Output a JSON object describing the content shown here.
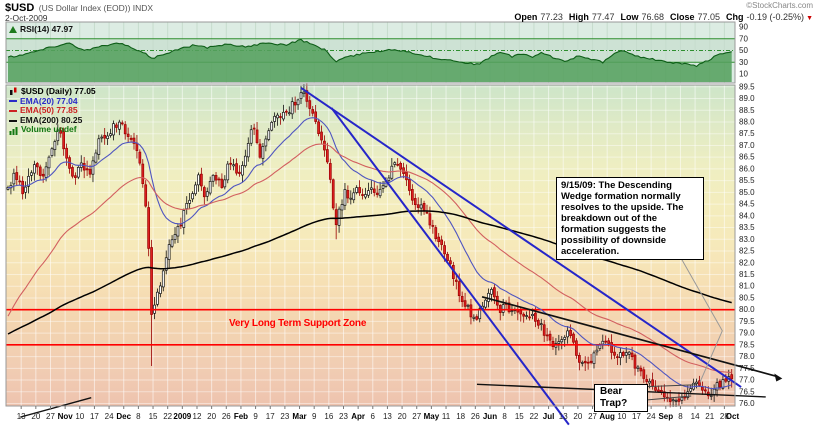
{
  "header": {
    "symbol": "$USD",
    "description": "(US Dollar Index (EOD)) INDX",
    "date": "2-Oct-2009",
    "credit": "©StockCharts.com",
    "quote": {
      "open_label": "Open",
      "open": "77.23",
      "high_label": "High",
      "high": "77.47",
      "low_label": "Low",
      "low": "76.68",
      "close_label": "Close",
      "close": "77.05",
      "chg_label": "Chg",
      "chg": "-0.19 (-0.25%)"
    }
  },
  "rsi_legend": {
    "label": "RSI(14) 47.97"
  },
  "main_legend": {
    "items": [
      {
        "label": "$USD (Daily) 77.05",
        "color": "#000000",
        "icon": "candlestick-icon"
      },
      {
        "label": "EMA(20) 77.04",
        "color": "#2a2ac8",
        "icon": "line-swatch-icon"
      },
      {
        "label": "EMA(50) 77.85",
        "color": "#cc2222",
        "icon": "line-swatch-icon"
      },
      {
        "label": "EMA(200) 80.25",
        "color": "#111111",
        "icon": "line-swatch-icon"
      },
      {
        "label": "Volume undef",
        "color": "#117711",
        "icon": "volume-bars-icon"
      }
    ]
  },
  "annotations": {
    "wedge_note": "9/15/09: The Descending Wedge formation normally resolves to the upside. The breakdown out of the formation suggests the possibility of downside acceleration.",
    "bear_trap_line1": "Bear",
    "bear_trap_line2": "Trap?",
    "support_zone": "Very Long Term Support Zone"
  },
  "chart_data": {
    "type": "candlestick",
    "symbol": "$USD",
    "period_label": "Daily",
    "last_quote": {
      "open": 77.23,
      "high": 77.47,
      "low": 76.68,
      "close": 77.05,
      "change": -0.19,
      "change_pct": -0.25
    },
    "price_axis": {
      "min": 76.0,
      "max": 89.5,
      "step": 0.5
    },
    "x_labels": [
      {
        "t": "13"
      },
      {
        "t": "20"
      },
      {
        "t": "27"
      },
      {
        "t": "Nov",
        "bold": true
      },
      {
        "t": "10"
      },
      {
        "t": "17"
      },
      {
        "t": "24"
      },
      {
        "t": "Dec",
        "bold": true
      },
      {
        "t": "8"
      },
      {
        "t": "15"
      },
      {
        "t": "22"
      },
      {
        "t": "2009",
        "bold": true
      },
      {
        "t": "12"
      },
      {
        "t": "20"
      },
      {
        "t": "26"
      },
      {
        "t": "Feb",
        "bold": true
      },
      {
        "t": "9"
      },
      {
        "t": "17"
      },
      {
        "t": "23"
      },
      {
        "t": "Mar",
        "bold": true
      },
      {
        "t": "9"
      },
      {
        "t": "16"
      },
      {
        "t": "23"
      },
      {
        "t": "Apr",
        "bold": true
      },
      {
        "t": "6"
      },
      {
        "t": "13"
      },
      {
        "t": "20"
      },
      {
        "t": "27"
      },
      {
        "t": "May",
        "bold": true
      },
      {
        "t": "11"
      },
      {
        "t": "18"
      },
      {
        "t": "26"
      },
      {
        "t": "Jun",
        "bold": true
      },
      {
        "t": "8"
      },
      {
        "t": "15"
      },
      {
        "t": "22"
      },
      {
        "t": "Jul",
        "bold": true
      },
      {
        "t": "13"
      },
      {
        "t": "20"
      },
      {
        "t": "27"
      },
      {
        "t": "Aug",
        "bold": true
      },
      {
        "t": "10"
      },
      {
        "t": "17"
      },
      {
        "t": "24"
      },
      {
        "t": "Sep",
        "bold": true
      },
      {
        "t": "8"
      },
      {
        "t": "14"
      },
      {
        "t": "21"
      },
      {
        "t": "28"
      },
      {
        "t": "Oct",
        "bold": true,
        "w": 48.55
      }
    ],
    "candles": {
      "count": 248,
      "close_anchors": [
        [
          0.0,
          85.2
        ],
        [
          0.01,
          85.8
        ],
        [
          0.022,
          84.9
        ],
        [
          0.035,
          86.2
        ],
        [
          0.048,
          85.6
        ],
        [
          0.06,
          86.9
        ],
        [
          0.072,
          87.7
        ],
        [
          0.08,
          86.5
        ],
        [
          0.09,
          85.5
        ],
        [
          0.1,
          86.3
        ],
        [
          0.112,
          85.7
        ],
        [
          0.125,
          87.2
        ],
        [
          0.14,
          87.5
        ],
        [
          0.155,
          88.2
        ],
        [
          0.165,
          87.3
        ],
        [
          0.175,
          86.9
        ],
        [
          0.183,
          86.1
        ],
        [
          0.19,
          84.6
        ],
        [
          0.195,
          82.3
        ],
        [
          0.199,
          79.3
        ],
        [
          0.205,
          80.8
        ],
        [
          0.212,
          81.3
        ],
        [
          0.22,
          82.6
        ],
        [
          0.23,
          83.3
        ],
        [
          0.24,
          83.8
        ],
        [
          0.252,
          84.8
        ],
        [
          0.262,
          85.7
        ],
        [
          0.272,
          84.9
        ],
        [
          0.285,
          85.9
        ],
        [
          0.295,
          85.1
        ],
        [
          0.305,
          86.4
        ],
        [
          0.318,
          85.6
        ],
        [
          0.328,
          86.6
        ],
        [
          0.34,
          87.9
        ],
        [
          0.348,
          86.5
        ],
        [
          0.356,
          87.3
        ],
        [
          0.368,
          88.3
        ],
        [
          0.38,
          88.2
        ],
        [
          0.39,
          88.6
        ],
        [
          0.402,
          89.1
        ],
        [
          0.408,
          89.2
        ],
        [
          0.415,
          88.8
        ],
        [
          0.423,
          88.3
        ],
        [
          0.432,
          87.4
        ],
        [
          0.44,
          86.4
        ],
        [
          0.448,
          85.0
        ],
        [
          0.452,
          83.6
        ],
        [
          0.458,
          84.2
        ],
        [
          0.465,
          85.0
        ],
        [
          0.473,
          84.6
        ],
        [
          0.482,
          85.3
        ],
        [
          0.492,
          84.6
        ],
        [
          0.503,
          85.3
        ],
        [
          0.512,
          84.8
        ],
        [
          0.52,
          85.4
        ],
        [
          0.53,
          86.0
        ],
        [
          0.54,
          86.2
        ],
        [
          0.548,
          85.5
        ],
        [
          0.558,
          84.9
        ],
        [
          0.568,
          84.4
        ],
        [
          0.578,
          84.2
        ],
        [
          0.588,
          83.4
        ],
        [
          0.598,
          82.8
        ],
        [
          0.608,
          82.1
        ],
        [
          0.618,
          81.2
        ],
        [
          0.628,
          80.4
        ],
        [
          0.638,
          79.9
        ],
        [
          0.645,
          79.6
        ],
        [
          0.655,
          80.2
        ],
        [
          0.665,
          80.9
        ],
        [
          0.672,
          80.4
        ],
        [
          0.68,
          79.9
        ],
        [
          0.688,
          80.2
        ],
        [
          0.696,
          79.8
        ],
        [
          0.705,
          80.0
        ],
        [
          0.715,
          79.5
        ],
        [
          0.725,
          79.9
        ],
        [
          0.735,
          79.3
        ],
        [
          0.745,
          78.8
        ],
        [
          0.755,
          78.5
        ],
        [
          0.762,
          78.6
        ],
        [
          0.772,
          79.0
        ],
        [
          0.782,
          78.5
        ],
        [
          0.79,
          77.9
        ],
        [
          0.8,
          77.6
        ],
        [
          0.812,
          78.3
        ],
        [
          0.822,
          78.8
        ],
        [
          0.832,
          78.3
        ],
        [
          0.842,
          78.0
        ],
        [
          0.852,
          78.2
        ],
        [
          0.862,
          77.9
        ],
        [
          0.872,
          77.4
        ],
        [
          0.882,
          76.9
        ],
        [
          0.892,
          76.7
        ],
        [
          0.9,
          76.4
        ],
        [
          0.91,
          76.1
        ],
        [
          0.92,
          76.3
        ],
        [
          0.93,
          76.2
        ],
        [
          0.938,
          76.5
        ],
        [
          0.95,
          76.9
        ],
        [
          0.96,
          76.7
        ],
        [
          0.97,
          76.3
        ],
        [
          0.98,
          76.8
        ],
        [
          0.99,
          77.0
        ],
        [
          1.0,
          77.05
        ]
      ],
      "spikes": [
        {
          "x": 0.199,
          "low": 77.6
        },
        {
          "x": 0.408,
          "high": 89.62
        },
        {
          "x": 0.452,
          "low": 83.0
        },
        {
          "x": 0.92,
          "low": 75.85
        }
      ]
    },
    "emas": [
      {
        "period": 20,
        "value": 77.04,
        "color": "#4f55c0",
        "seed": 85.2,
        "width": 1.1
      },
      {
        "period": 50,
        "value": 77.85,
        "color": "#d26060",
        "seed": 79.5,
        "width": 1.1
      },
      {
        "period": 200,
        "value": 80.25,
        "color": "#000000",
        "seed": 78.9,
        "width": 1.5
      }
    ],
    "rsi": {
      "period": 14,
      "value": 47.97,
      "axis_labels": [
        90,
        70,
        50,
        30,
        10
      ],
      "overbought": 70,
      "mid": 50,
      "oversold": 30,
      "anchors": [
        [
          0.0,
          38
        ],
        [
          0.03,
          46
        ],
        [
          0.06,
          56
        ],
        [
          0.085,
          63
        ],
        [
          0.105,
          50
        ],
        [
          0.13,
          57
        ],
        [
          0.155,
          63
        ],
        [
          0.175,
          52
        ],
        [
          0.19,
          44
        ],
        [
          0.2,
          37
        ],
        [
          0.215,
          44
        ],
        [
          0.235,
          52
        ],
        [
          0.26,
          60
        ],
        [
          0.275,
          55
        ],
        [
          0.3,
          60
        ],
        [
          0.33,
          57
        ],
        [
          0.355,
          62
        ],
        [
          0.385,
          60
        ],
        [
          0.405,
          68
        ],
        [
          0.42,
          60
        ],
        [
          0.44,
          50
        ],
        [
          0.452,
          31
        ],
        [
          0.465,
          38
        ],
        [
          0.49,
          45
        ],
        [
          0.51,
          48
        ],
        [
          0.53,
          52
        ],
        [
          0.55,
          49
        ],
        [
          0.57,
          43
        ],
        [
          0.59,
          37
        ],
        [
          0.615,
          33
        ],
        [
          0.635,
          29
        ],
        [
          0.65,
          26
        ],
        [
          0.668,
          40
        ],
        [
          0.682,
          48
        ],
        [
          0.697,
          39
        ],
        [
          0.71,
          45
        ],
        [
          0.725,
          39
        ],
        [
          0.738,
          46
        ],
        [
          0.755,
          37
        ],
        [
          0.772,
          32
        ],
        [
          0.79,
          42
        ],
        [
          0.807,
          35
        ],
        [
          0.822,
          30
        ],
        [
          0.838,
          44
        ],
        [
          0.852,
          51
        ],
        [
          0.866,
          41
        ],
        [
          0.883,
          37
        ],
        [
          0.9,
          33
        ],
        [
          0.918,
          29
        ],
        [
          0.935,
          27
        ],
        [
          0.952,
          24
        ],
        [
          0.967,
          33
        ],
        [
          0.982,
          44
        ],
        [
          1.0,
          47.97
        ]
      ]
    },
    "support_lines": [
      {
        "price": 80.0,
        "color": "#ff0000"
      },
      {
        "price": 78.5,
        "color": "#ff0000"
      }
    ],
    "trendlines": [
      {
        "name": "wedge-upper-blue",
        "color": "#2626c9",
        "width": 2,
        "x1": 0.405,
        "p1": 89.45,
        "x2": 1.013,
        "p2": 76.7
      },
      {
        "name": "wedge-steep-blue",
        "color": "#2626c9",
        "width": 2,
        "x1": 0.447,
        "p1": 88.6,
        "x2": 0.775,
        "p2": 75.1
      },
      {
        "name": "support-black-upper",
        "color": "#111111",
        "width": 1.7,
        "x1": 0.655,
        "p1": 80.55,
        "x2": 1.063,
        "p2": 77.15,
        "arrow": true
      },
      {
        "name": "support-black-lower",
        "color": "#111111",
        "width": 1.4,
        "x1": 0.648,
        "p1": 76.82,
        "x2": 1.047,
        "p2": 76.28
      },
      {
        "name": "left-rising-black",
        "color": "#111111",
        "width": 1.4,
        "x1": 0.017,
        "p1": 75.42,
        "x2": 0.115,
        "p2": 76.25
      }
    ],
    "callout_line": {
      "color": "#999999",
      "points": [
        [
          0.929,
          82.25
        ],
        [
          0.987,
          79.1
        ],
        [
          0.956,
          76.9
        ]
      ]
    },
    "bear_trap_leaders": [
      [
        [
          0.882,
          76.72
        ],
        [
          0.951,
          76.8
        ]
      ],
      [
        [
          0.882,
          76.15
        ],
        [
          0.944,
          76.32
        ]
      ]
    ],
    "colors": {
      "candle_up_fill": "#ffffff",
      "candle_up_stroke": "#111111",
      "candle_down_fill": "#dd2020",
      "candle_down_stroke": "#990000",
      "rsi_fill": "#55a05e",
      "rsi_stroke": "#0e5e18",
      "rsi_bg": "#dcece3",
      "rsi_band": "#cde2d4",
      "rsi_level_line": "#2f8f2f",
      "grid_main": "rgba(255,255,255,0.55)",
      "grid_rsi": "#c6dccd",
      "panel_border": "#999999",
      "bg_gradient": [
        "#cde5c9",
        "#dfeac6",
        "#eeeec2",
        "#f4edbd",
        "#f6e9ba",
        "#f6dfb4",
        "#f3d4b0",
        "#f1cdb3",
        "#eec3ae"
      ]
    }
  }
}
